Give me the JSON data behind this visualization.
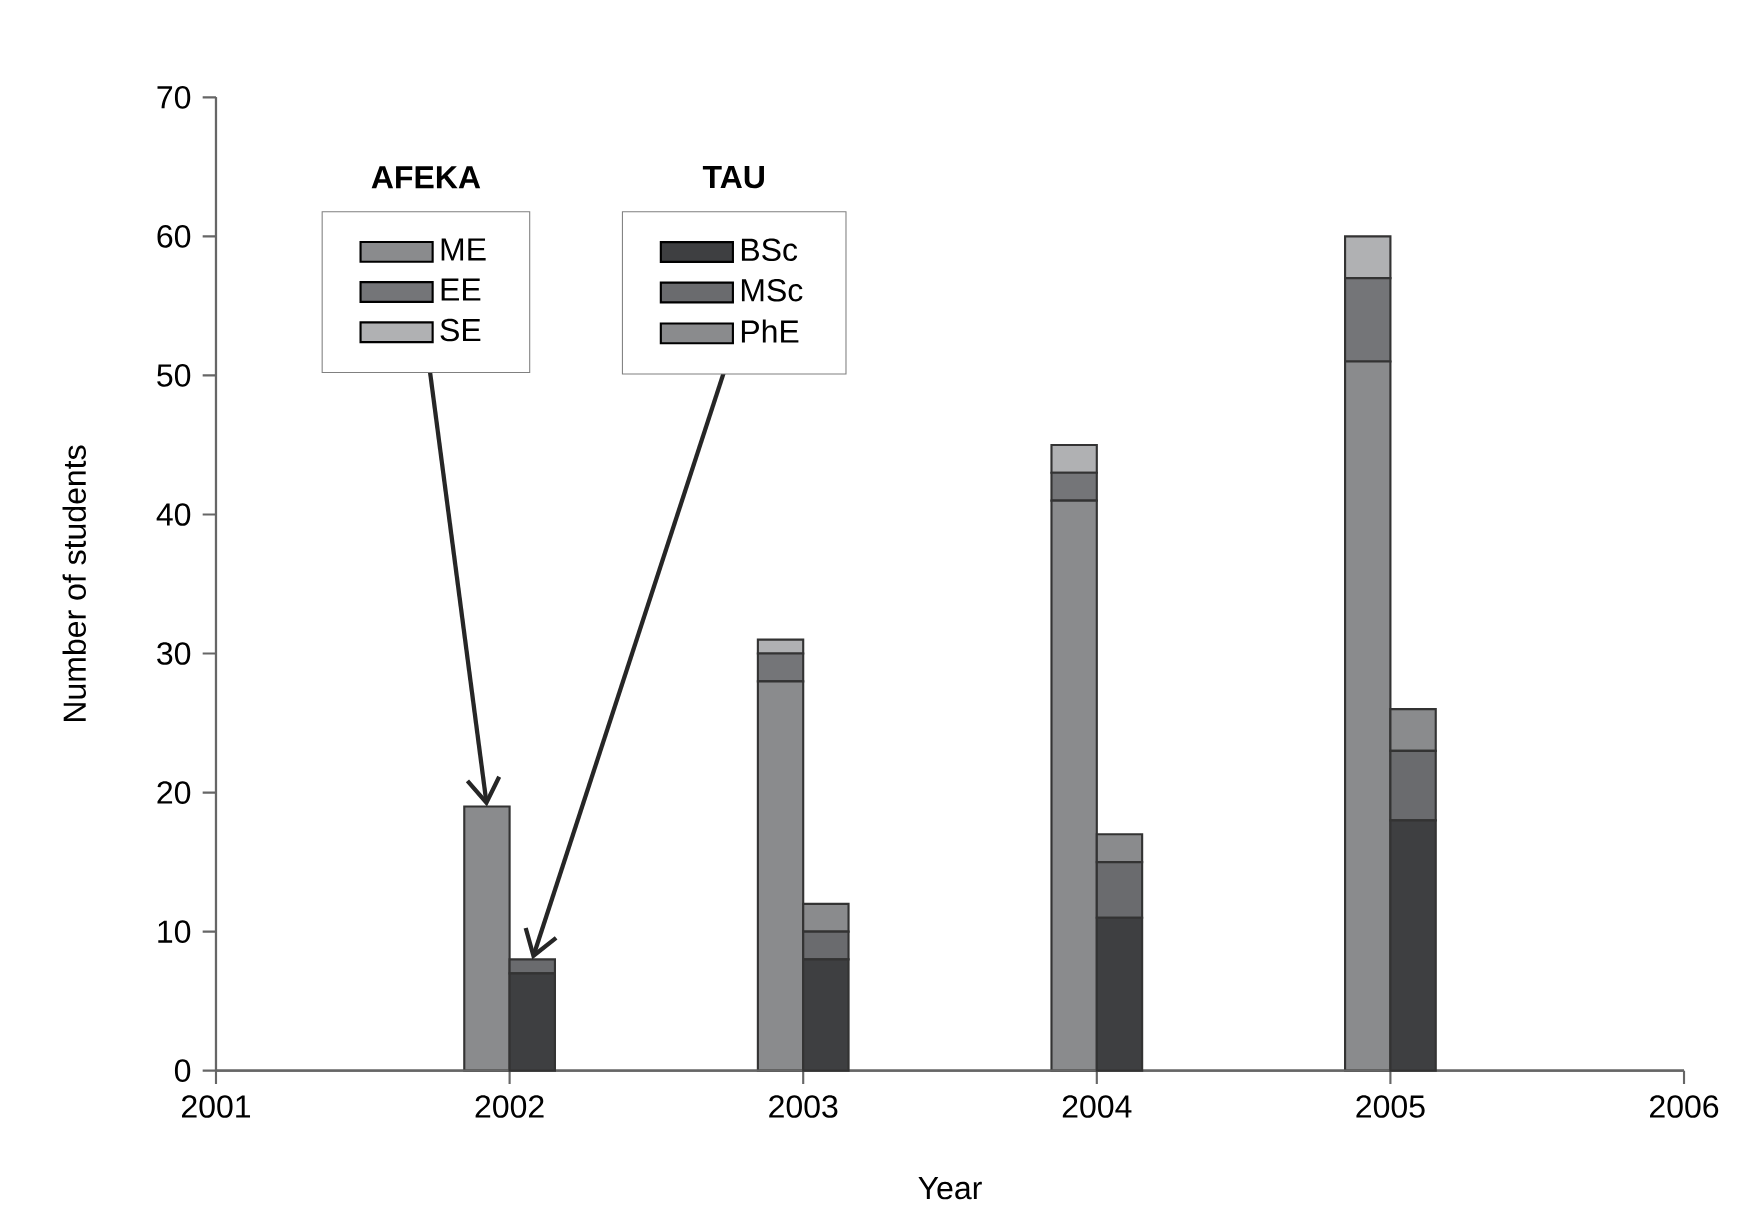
{
  "chart_data": [
    {
      "type": "bar",
      "stacked": true,
      "xlabel": "Year",
      "ylabel": "Number of students",
      "legend_title": "AFEKA",
      "x": [
        2002,
        2003,
        2004,
        2005
      ],
      "series": [
        {
          "name": "ME",
          "color": "#8a8b8d",
          "values": [
            19,
            28,
            41,
            51
          ]
        },
        {
          "name": "EE",
          "color": "#747578",
          "values": [
            0,
            2,
            2,
            6
          ]
        },
        {
          "name": "SE",
          "color": "#b0b1b3",
          "values": [
            0,
            1,
            2,
            3
          ]
        }
      ],
      "xlim": [
        2001,
        2006
      ],
      "xticks": [
        2001,
        2002,
        2003,
        2004,
        2005,
        2006
      ],
      "ylim": [
        0,
        70
      ],
      "yticks": [
        0,
        10,
        20,
        30,
        40,
        50,
        60,
        70
      ],
      "legend": "top left"
    },
    {
      "type": "bar",
      "stacked": true,
      "legend_title": "TAU",
      "x": [
        2002,
        2003,
        2004,
        2005
      ],
      "series": [
        {
          "name": "BSc",
          "color": "#3e3f41",
          "values": [
            7,
            8,
            11,
            18
          ]
        },
        {
          "name": "MSc",
          "color": "#6a6b6e",
          "values": [
            1,
            2,
            4,
            5
          ]
        },
        {
          "name": "PhE",
          "color": "#8a8b8d",
          "values": [
            0,
            2,
            2,
            3
          ]
        }
      ],
      "xlim": [
        2001,
        2006
      ],
      "ylim": [
        0,
        70
      ],
      "tick_labels": false,
      "legend": "top left"
    }
  ]
}
